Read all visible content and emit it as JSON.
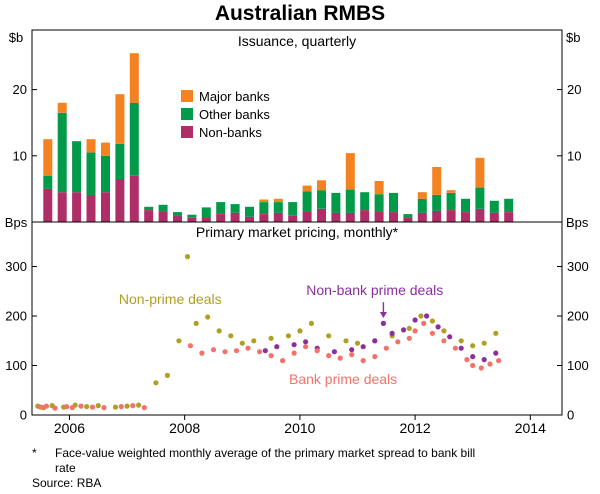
{
  "title": "Australian RMBS",
  "footnote": {
    "marker": "*",
    "text": "Face-value weighted monthly average of the primary market spread to bank bill rate"
  },
  "source": "Source: RBA",
  "chart_data": {
    "x_range": [
      2005.35,
      2014.55
    ],
    "x_ticks": [
      "2006",
      "2008",
      "2010",
      "2012",
      "2014"
    ],
    "panels": [
      {
        "type": "stacked_bar",
        "title": "Issuance, quarterly",
        "unit": "$b",
        "ylim": [
          0,
          29
        ],
        "yticks": [
          10,
          20
        ],
        "series_order": [
          "non_banks",
          "other_banks",
          "major_banks"
        ],
        "legend": [
          {
            "key": "major_banks",
            "label": "Major banks",
            "color": "#F58220"
          },
          {
            "key": "other_banks",
            "label": "Other banks",
            "color": "#009A49"
          },
          {
            "key": "non_banks",
            "label": "Non-banks",
            "color": "#B02E68"
          }
        ],
        "bars": [
          {
            "q": "2005Q3",
            "non_banks": 5.0,
            "other_banks": 2.0,
            "major_banks": 5.5
          },
          {
            "q": "2005Q4",
            "non_banks": 4.5,
            "other_banks": 12.0,
            "major_banks": 1.5
          },
          {
            "q": "2006Q1",
            "non_banks": 4.5,
            "other_banks": 7.7,
            "major_banks": 0.0
          },
          {
            "q": "2006Q2",
            "non_banks": 4.0,
            "other_banks": 6.5,
            "major_banks": 2.0
          },
          {
            "q": "2006Q3",
            "non_banks": 4.5,
            "other_banks": 5.5,
            "major_banks": 2.0
          },
          {
            "q": "2006Q4",
            "non_banks": 6.5,
            "other_banks": 5.3,
            "major_banks": 7.5
          },
          {
            "q": "2007Q1",
            "non_banks": 7.0,
            "other_banks": 11.0,
            "major_banks": 7.5
          },
          {
            "q": "2007Q2",
            "non_banks": 1.8,
            "other_banks": 0.5,
            "major_banks": 0.0
          },
          {
            "q": "2007Q3",
            "non_banks": 1.6,
            "other_banks": 1.0,
            "major_banks": 0.0
          },
          {
            "q": "2007Q4",
            "non_banks": 1.0,
            "other_banks": 0.5,
            "major_banks": 0.0
          },
          {
            "q": "2008Q1",
            "non_banks": 0.7,
            "other_banks": 0.4,
            "major_banks": 0.0
          },
          {
            "q": "2008Q2",
            "non_banks": 0.6,
            "other_banks": 1.6,
            "major_banks": 0.0
          },
          {
            "q": "2008Q3",
            "non_banks": 1.2,
            "other_banks": 1.8,
            "major_banks": 0.0
          },
          {
            "q": "2008Q4",
            "non_banks": 1.4,
            "other_banks": 1.3,
            "major_banks": 0.0
          },
          {
            "q": "2009Q1",
            "non_banks": 0.8,
            "other_banks": 1.5,
            "major_banks": 0.0
          },
          {
            "q": "2009Q2",
            "non_banks": 1.2,
            "other_banks": 1.8,
            "major_banks": 0.4
          },
          {
            "q": "2009Q3",
            "non_banks": 1.4,
            "other_banks": 1.6,
            "major_banks": 0.5
          },
          {
            "q": "2009Q4",
            "non_banks": 1.0,
            "other_banks": 2.0,
            "major_banks": 0.0
          },
          {
            "q": "2010Q1",
            "non_banks": 1.6,
            "other_banks": 3.0,
            "major_banks": 0.9
          },
          {
            "q": "2010Q2",
            "non_banks": 2.0,
            "other_banks": 2.8,
            "major_banks": 1.5
          },
          {
            "q": "2010Q3",
            "non_banks": 1.4,
            "other_banks": 3.0,
            "major_banks": 0.0
          },
          {
            "q": "2010Q4",
            "non_banks": 1.4,
            "other_banks": 3.5,
            "major_banks": 5.5
          },
          {
            "q": "2011Q1",
            "non_banks": 1.8,
            "other_banks": 2.7,
            "major_banks": 0.0
          },
          {
            "q": "2011Q2",
            "non_banks": 1.6,
            "other_banks": 2.6,
            "major_banks": 2.0
          },
          {
            "q": "2011Q3",
            "non_banks": 1.5,
            "other_banks": 2.9,
            "major_banks": 0.0
          },
          {
            "q": "2011Q4",
            "non_banks": 0.7,
            "other_banks": 0.5,
            "major_banks": 0.0
          },
          {
            "q": "2012Q1",
            "non_banks": 1.4,
            "other_banks": 2.1,
            "major_banks": 1.0
          },
          {
            "q": "2012Q2",
            "non_banks": 1.7,
            "other_banks": 2.4,
            "major_banks": 4.2
          },
          {
            "q": "2012Q3",
            "non_banks": 1.8,
            "other_banks": 2.6,
            "major_banks": 0.4
          },
          {
            "q": "2012Q4",
            "non_banks": 1.5,
            "other_banks": 2.0,
            "major_banks": 0.0
          },
          {
            "q": "2013Q1",
            "non_banks": 2.0,
            "other_banks": 3.2,
            "major_banks": 4.5
          },
          {
            "q": "2013Q2",
            "non_banks": 1.4,
            "other_banks": 1.8,
            "major_banks": 0.0
          },
          {
            "q": "2013Q3",
            "non_banks": 1.5,
            "other_banks": 2.0,
            "major_banks": 0.0
          }
        ]
      },
      {
        "type": "scatter",
        "title": "Primary market pricing, monthly*",
        "unit": "Bps",
        "ylim": [
          0,
          390
        ],
        "yticks": [
          0,
          100,
          200,
          300
        ],
        "series": [
          {
            "name": "Non-prime deals",
            "color": "#AFA023",
            "points": [
              [
                2005.45,
                18
              ],
              [
                2005.55,
                15
              ],
              [
                2005.7,
                19
              ],
              [
                2005.9,
                16
              ],
              [
                2006.1,
                20
              ],
              [
                2006.3,
                17
              ],
              [
                2006.5,
                19
              ],
              [
                2006.8,
                16
              ],
              [
                2007.0,
                18
              ],
              [
                2007.2,
                20
              ],
              [
                2007.5,
                65
              ],
              [
                2007.7,
                80
              ],
              [
                2007.9,
                150
              ],
              [
                2008.05,
                320
              ],
              [
                2008.2,
                185
              ],
              [
                2008.4,
                198
              ],
              [
                2008.6,
                170
              ],
              [
                2008.8,
                160
              ],
              [
                2009.0,
                145
              ],
              [
                2009.2,
                150
              ],
              [
                2009.5,
                155
              ],
              [
                2009.8,
                160
              ],
              [
                2010.0,
                170
              ],
              [
                2010.2,
                185
              ],
              [
                2010.5,
                160
              ],
              [
                2010.8,
                150
              ],
              [
                2011.0,
                145
              ],
              [
                2011.3,
                150
              ],
              [
                2011.6,
                160
              ],
              [
                2011.9,
                175
              ],
              [
                2012.1,
                200
              ],
              [
                2012.3,
                190
              ],
              [
                2012.5,
                170
              ],
              [
                2012.8,
                150
              ],
              [
                2013.0,
                140
              ],
              [
                2013.2,
                145
              ],
              [
                2013.4,
                165
              ]
            ]
          },
          {
            "name": "Non-bank prime deals",
            "color": "#8B2F9E",
            "points": [
              [
                2009.4,
                130
              ],
              [
                2009.6,
                138
              ],
              [
                2009.9,
                142
              ],
              [
                2010.1,
                148
              ],
              [
                2010.3,
                135
              ],
              [
                2010.6,
                128
              ],
              [
                2010.9,
                132
              ],
              [
                2011.1,
                138
              ],
              [
                2011.3,
                150
              ],
              [
                2011.45,
                185
              ],
              [
                2011.6,
                165
              ],
              [
                2011.8,
                172
              ],
              [
                2012.0,
                192
              ],
              [
                2012.2,
                200
              ],
              [
                2012.4,
                178
              ],
              [
                2012.6,
                158
              ],
              [
                2012.8,
                135
              ],
              [
                2013.0,
                118
              ],
              [
                2013.2,
                112
              ],
              [
                2013.4,
                125
              ]
            ]
          },
          {
            "name": "Bank prime deals",
            "color": "#F4726B",
            "points": [
              [
                2005.5,
                16
              ],
              [
                2005.6,
                18
              ],
              [
                2005.75,
                14
              ],
              [
                2005.95,
                17
              ],
              [
                2006.05,
                15
              ],
              [
                2006.2,
                18
              ],
              [
                2006.4,
                16
              ],
              [
                2006.6,
                15
              ],
              [
                2006.9,
                17
              ],
              [
                2007.1,
                19
              ],
              [
                2007.3,
                15
              ],
              [
                2008.1,
                140
              ],
              [
                2008.3,
                125
              ],
              [
                2008.5,
                132
              ],
              [
                2008.7,
                128
              ],
              [
                2008.9,
                130
              ],
              [
                2009.1,
                135
              ],
              [
                2009.3,
                128
              ],
              [
                2009.5,
                120
              ],
              [
                2009.7,
                110
              ],
              [
                2009.9,
                125
              ],
              [
                2010.1,
                138
              ],
              [
                2010.3,
                130
              ],
              [
                2010.5,
                120
              ],
              [
                2010.7,
                115
              ],
              [
                2010.9,
                122
              ],
              [
                2011.1,
                110
              ],
              [
                2011.3,
                118
              ],
              [
                2011.5,
                135
              ],
              [
                2011.7,
                148
              ],
              [
                2011.9,
                155
              ],
              [
                2012.0,
                170
              ],
              [
                2012.15,
                185
              ],
              [
                2012.3,
                165
              ],
              [
                2012.5,
                150
              ],
              [
                2012.7,
                135
              ],
              [
                2012.9,
                112
              ],
              [
                2013.0,
                100
              ],
              [
                2013.15,
                95
              ],
              [
                2013.3,
                103
              ],
              [
                2013.45,
                110
              ]
            ]
          }
        ],
        "annotations": [
          {
            "text": "Non-prime deals",
            "color": "#AFA023",
            "x": 2007.75,
            "y": 235
          },
          {
            "text": "Non-bank prime deals",
            "color": "#8B2F9E",
            "x": 2011.3,
            "y": 252,
            "arrow": {
              "x": 2011.45,
              "from_y": 228,
              "to_y": 196
            }
          },
          {
            "text": "Bank prime deals",
            "color": "#F4726B",
            "x": 2010.75,
            "y": 72
          }
        ]
      }
    ]
  }
}
